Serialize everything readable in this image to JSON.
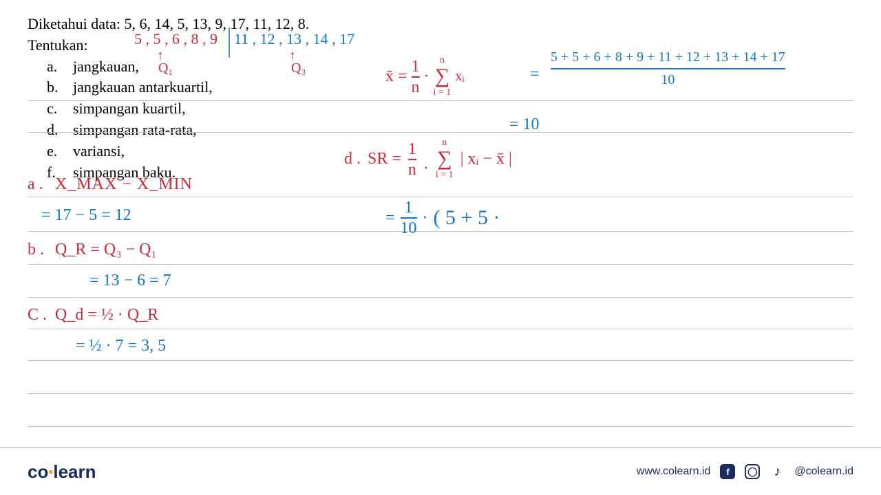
{
  "printed": {
    "title": "Diketahui data: 5, 6, 14, 5, 13, 9, 17, 11, 12, 8.",
    "prompt": "Tentukan:",
    "items": [
      {
        "label": "a.",
        "text": "jangkauan,"
      },
      {
        "label": "b.",
        "text": "jangkauan antarkuartil,"
      },
      {
        "label": "c.",
        "text": "simpangan kuartil,"
      },
      {
        "label": "d.",
        "text": "simpangan rata-rata,"
      },
      {
        "label": "e.",
        "text": "variansi,"
      },
      {
        "label": "f.",
        "text": "simpangan baku."
      }
    ]
  },
  "handwriting": {
    "sorted_left": "5 , 5 , 6 , 8 , 9",
    "sorted_right": "11 , 12 , 13 , 14 , 17",
    "q1_label": "Q₁",
    "q3_label": "Q₃",
    "a_label": "a .",
    "a_formula": "X_MAX  −  X_MIN",
    "a_calc": "= 17 − 5  = 12",
    "b_label": "b .",
    "b_formula": "Q_R =  Q₃ − Q₁",
    "b_calc": "=  13 −  6  =  7",
    "c_label": "C .",
    "c_formula": "Q_d = ½ · Q_R",
    "c_calc": "= ½  ·  7   =  3, 5",
    "xbar_lhs": "x̄ =",
    "xbar_frac_top": "1",
    "xbar_frac_bot": "n",
    "xbar_dot": "·",
    "xbar_sum_top": "n",
    "xbar_sum_bot": "i = 1",
    "xbar_sum_body": "xᵢ",
    "xbar_eq": "=",
    "xbar_num": "5 + 5 + 6 + 8 + 9 + 11 + 12 + 13 + 14 + 17",
    "xbar_den": "10",
    "xbar_result": "=  10",
    "d_label": "d .",
    "d_lhs": "SR =",
    "d_frac_top": "1",
    "d_frac_bot": "n",
    "d_dot": "·",
    "d_sum_top": "n",
    "d_sum_bot": "i = 1",
    "d_body": "| xᵢ − x̄ |",
    "d_calc_eq": "=",
    "d_calc_frac_top": "1",
    "d_calc_frac_bot": "10",
    "d_calc_dot": "·",
    "d_calc_paren": "( 5 + 5 ·"
  },
  "ruled_lines_y": [
    146,
    192,
    286,
    336,
    384,
    432,
    478,
    524,
    572,
    620
  ],
  "colors": {
    "printed": "#000000",
    "hw_red": "#cc2a3a",
    "hw_blue": "#1176c9",
    "ruled": "#bfbfbf",
    "logo_navy": "#1a2b5c",
    "logo_gold": "#f5a623",
    "background": "#ffffff"
  },
  "footer": {
    "logo_left": "co",
    "logo_right": "learn",
    "url": "www.colearn.id",
    "handle": "@colearn.id"
  }
}
